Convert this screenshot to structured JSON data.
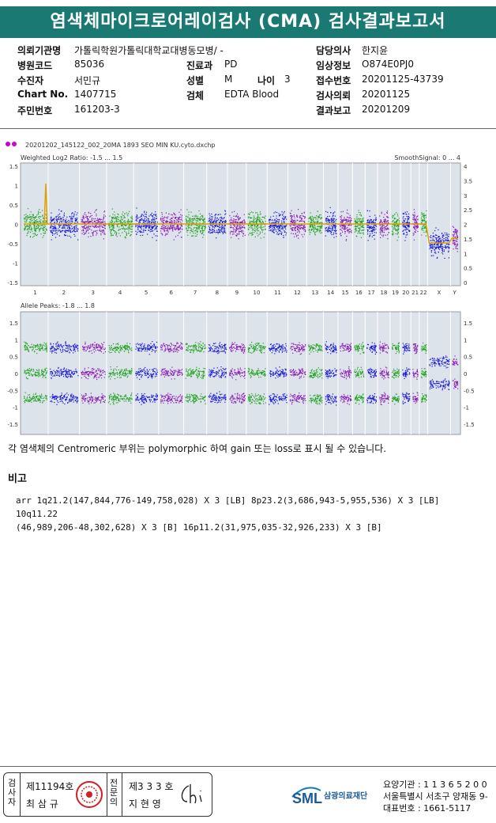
{
  "title": "염색체마이크로어레이검사 (CMA) 검사결과보고서",
  "info": {
    "hospital_label": "의뢰기관명",
    "hospital": "가톨릭학원가톨릭대학교대병동모병/ -",
    "doctor_label": "담당의사",
    "doctor": "한지윤",
    "code_label": "병원코드",
    "code": "85036",
    "dept_label": "진료과",
    "dept": "PD",
    "clinical_label": "임상정보",
    "clinical": "O874E0PJ0",
    "patient_label": "수진자",
    "patient": "서민규",
    "sex_label": "성별",
    "sex": "M",
    "age_label": "나이",
    "age": "3",
    "receipt_label": "접수번호",
    "receipt": "20201125-43739",
    "chart_label": "Chart No.",
    "chart": "1407715",
    "specimen_label": "검체",
    "specimen": "EDTA Blood",
    "request_label": "검사의뢰",
    "request": "20201125",
    "id_label": "주민번호",
    "id": "161203-3",
    "report_label": "결과보고",
    "report": "20201209"
  },
  "chart_data": {
    "type": "scatter",
    "file": "20201202_145122_002_20MA 1893 SEO MIN KU.cyto.dxchp",
    "top_label": "Weighted Log2 Ratio: -1.5 ... 1.5",
    "top_right_label": "SmoothSignal: 0 ... 4",
    "bottom_label": "Allele Peaks: -1.8 ... 1.8",
    "top_left_ticks": [
      "1.5",
      "1",
      "0.5",
      "0",
      "-0.5",
      "-1",
      "-1.5"
    ],
    "top_right_ticks": [
      "4",
      "3.5",
      "3",
      "2.5",
      "2",
      "1.5",
      "1",
      "0.5",
      "0"
    ],
    "bottom_left_ticks": [
      "1.5",
      "1",
      "0.5",
      "0",
      "-0.5",
      "-1",
      "-1.5"
    ],
    "bottom_right_ticks": [
      "1.5",
      "1",
      "0.5",
      "0",
      "-0.5",
      "-1",
      "-1.5"
    ],
    "chromosomes": [
      "1",
      "2",
      "3",
      "4",
      "5",
      "6",
      "7",
      "8",
      "9",
      "10",
      "11",
      "12",
      "13",
      "14",
      "15",
      "16",
      "17",
      "18",
      "19",
      "20",
      "21",
      "22",
      "X",
      "Y"
    ],
    "colors": {
      "green": "#1fa21f",
      "blue": "#1717d9",
      "purple": "#8a1db5",
      "trend": "#e0a000"
    }
  },
  "note": "각 염색체의 Centromeric 부위는 polymorphic 하여 gain 또는 loss로 표시 될 수 있습니다.",
  "remark_label": "비고",
  "result_line1": "arr 1q21.2(147,844,776-149,758,028) X 3 [LB] 8p23.2(3,686,943-5,955,536) X 3 [LB] 10q11.22",
  "result_line2": "(46,989,206-48,302,628) X 3 [B] 16p11.2(31,975,035-32,926,233) X 3 [B]",
  "footer": {
    "v1": [
      "검",
      "사",
      "자"
    ],
    "no1": "제11194호",
    "name1": "최 삼 규",
    "v2": [
      "전",
      "문",
      "의"
    ],
    "no2": "제3 3 3 호",
    "name2": "지 현 영"
  },
  "company": "삼광의료재단",
  "company_abbr": "SML",
  "addr1": "요양기관 : 1 1 3 6 5 2 0 0",
  "addr2": "서울특별시 서초구 양재동 9-",
  "addr3": "대표번호 : 1661-5117"
}
